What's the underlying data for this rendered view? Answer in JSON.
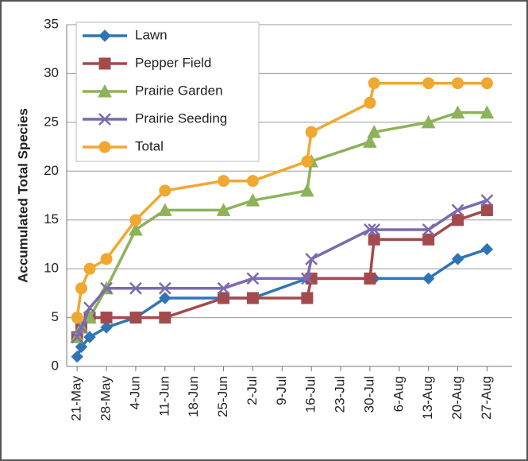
{
  "chart_data": {
    "type": "line",
    "y_label": "Accumulated Total Species",
    "x": [
      141,
      142,
      144,
      148,
      155,
      162,
      176,
      183,
      196,
      197,
      211,
      212,
      225,
      232,
      239
    ],
    "series": [
      {
        "name": "Lawn",
        "color": "#2e75b6",
        "marker": "diamond",
        "values": [
          1,
          2,
          3,
          4,
          5,
          7,
          7,
          7,
          9,
          9,
          9,
          9,
          9,
          11,
          12
        ]
      },
      {
        "name": "Pepper Field",
        "color": "#a34a4d",
        "marker": "square",
        "values": [
          3,
          4,
          5,
          5,
          5,
          5,
          7,
          7,
          7,
          9,
          9,
          13,
          13,
          15,
          16
        ]
      },
      {
        "name": "Prairie Garden",
        "color": "#8db35a",
        "marker": "triangle",
        "values": [
          3,
          4,
          5,
          8,
          14,
          16,
          16,
          17,
          18,
          21,
          23,
          24,
          25,
          26,
          26
        ]
      },
      {
        "name": "Prairie Seeding",
        "color": "#7c6aae",
        "marker": "x",
        "values": [
          3,
          4,
          6,
          8,
          8,
          8,
          8,
          9,
          9,
          11,
          14,
          14,
          14,
          16,
          17
        ]
      },
      {
        "name": "Total",
        "color": "#f0a830",
        "marker": "circle",
        "values": [
          5,
          8,
          10,
          11,
          15,
          18,
          19,
          19,
          21,
          24,
          27,
          29,
          29,
          29,
          29
        ]
      }
    ],
    "xlim": [
      138.5,
      245
    ],
    "xticks": [
      {
        "value": 141,
        "label": "21-May"
      },
      {
        "value": 148,
        "label": "28-May"
      },
      {
        "value": 155,
        "label": "4-Jun"
      },
      {
        "value": 162,
        "label": "11-Jun"
      },
      {
        "value": 169,
        "label": "18-Jun"
      },
      {
        "value": 176,
        "label": "25-Jun"
      },
      {
        "value": 183,
        "label": "2-Jul"
      },
      {
        "value": 190,
        "label": "9-Jul"
      },
      {
        "value": 197,
        "label": "16-Jul"
      },
      {
        "value": 204,
        "label": "23-Jul"
      },
      {
        "value": 211,
        "label": "30-Jul"
      },
      {
        "value": 218,
        "label": "6-Aug"
      },
      {
        "value": 225,
        "label": "13-Aug"
      },
      {
        "value": 232,
        "label": "20-Aug"
      },
      {
        "value": 239,
        "label": "27-Aug"
      }
    ],
    "ylim": [
      0,
      35
    ],
    "yticks": [
      0,
      5,
      10,
      15,
      20,
      25,
      30,
      35
    ],
    "grid": true,
    "legend": "upper left"
  }
}
